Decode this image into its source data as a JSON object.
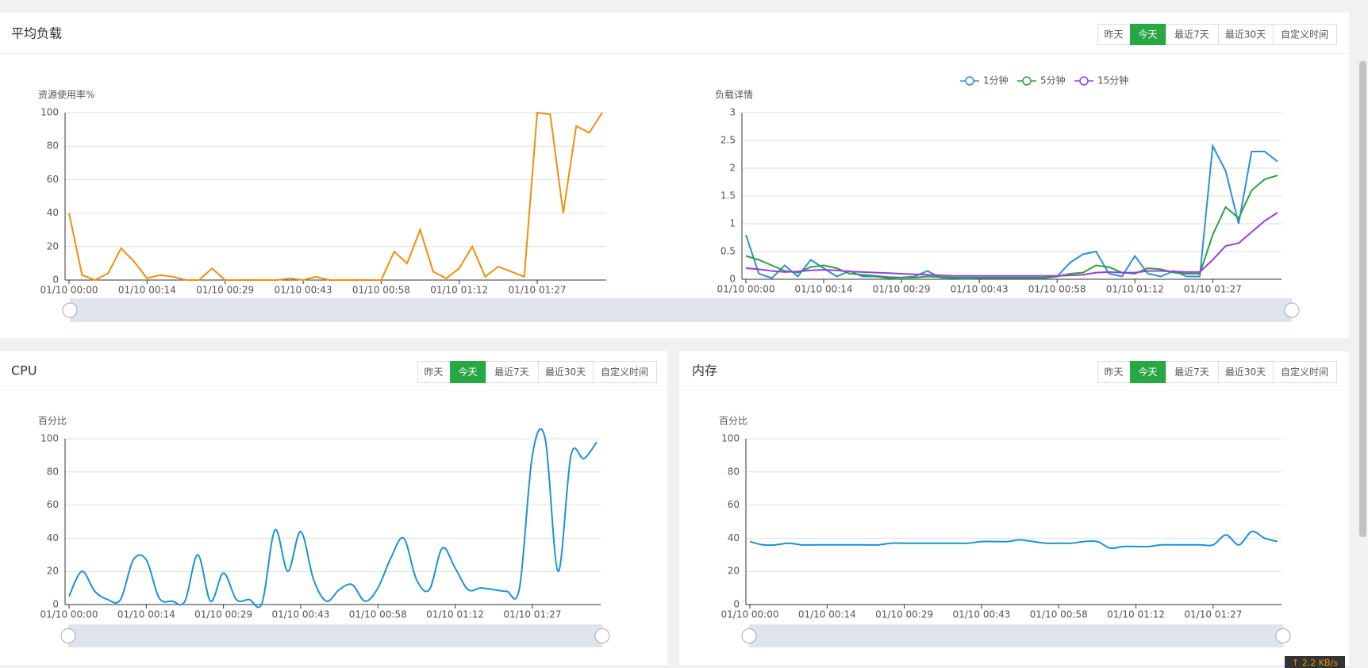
{
  "ui": {
    "panels": [
      {
        "title": "平均负载",
        "buttons": [
          "昨天",
          "今天",
          "最近7天",
          "最近30天",
          "自定义时间"
        ],
        "active": 1
      },
      {
        "title": "CPU",
        "buttons": [
          "昨天",
          "今天",
          "最近7天",
          "最近30天",
          "自定义时间"
        ],
        "active": 1
      },
      {
        "title": "内存",
        "buttons": [
          "昨天",
          "今天",
          "最近7天",
          "最近30天",
          "自定义时间"
        ],
        "active": 1
      }
    ],
    "badge": "↑ 2.2 KB/s"
  },
  "chart_data": [
    {
      "type": "line",
      "y_label": "资源使用率%",
      "smooth": false,
      "grid": true,
      "categories": [
        "01/10 00:00",
        null,
        null,
        null,
        null,
        null,
        "01/10 00:14",
        null,
        null,
        null,
        null,
        null,
        "01/10 00:29",
        null,
        null,
        null,
        null,
        null,
        "01/10 00:43",
        null,
        null,
        null,
        null,
        null,
        "01/10 00:58",
        null,
        null,
        null,
        null,
        null,
        "01/10 01:12",
        null,
        null,
        null,
        null,
        null,
        "01/10 01:27",
        null,
        null,
        null,
        null,
        null
      ],
      "series": [
        {
          "color": "#f0900a",
          "values": [
            40,
            3,
            0,
            4,
            19,
            11,
            1,
            3,
            2,
            0,
            0,
            7,
            0,
            0,
            0,
            0,
            0,
            1,
            0,
            2,
            0,
            0,
            0,
            0,
            0,
            17,
            10,
            30,
            5,
            1,
            7,
            20,
            2,
            8,
            5,
            2,
            100,
            99,
            40,
            92,
            88,
            100
          ]
        }
      ],
      "ylim": [
        0,
        100
      ],
      "yticks": [
        0,
        20,
        40,
        60,
        80,
        100
      ]
    },
    {
      "type": "line",
      "y_label": "负载详情",
      "smooth": false,
      "grid": true,
      "legend": "top",
      "categories": [
        "01/10 00:00",
        null,
        null,
        null,
        null,
        null,
        "01/10 00:14",
        null,
        null,
        null,
        null,
        null,
        "01/10 00:29",
        null,
        null,
        null,
        null,
        null,
        "01/10 00:43",
        null,
        null,
        null,
        null,
        null,
        "01/10 00:58",
        null,
        null,
        null,
        null,
        null,
        "01/10 01:12",
        null,
        null,
        null,
        null,
        null,
        "01/10 01:27",
        null,
        null,
        null,
        null,
        null
      ],
      "series": [
        {
          "name": "1分钟",
          "color": "#2d8fdd",
          "values": [
            0.8,
            0.1,
            0.02,
            0.25,
            0.05,
            0.35,
            0.2,
            0.05,
            0.15,
            0.05,
            0.05,
            0.02,
            0.03,
            0.05,
            0.15,
            0.03,
            0.02,
            0.01,
            0.02,
            0.02,
            0.02,
            0.02,
            0.02,
            0.02,
            0.05,
            0.3,
            0.45,
            0.5,
            0.1,
            0.05,
            0.42,
            0.1,
            0.05,
            0.15,
            0.05,
            0.05,
            2.4,
            1.95,
            1.0,
            2.3,
            2.3,
            2.12
          ]
        },
        {
          "name": "5分钟",
          "color": "#29a33c",
          "values": [
            0.42,
            0.35,
            0.25,
            0.15,
            0.12,
            0.22,
            0.25,
            0.2,
            0.1,
            0.08,
            0.06,
            0.04,
            0.03,
            0.03,
            0.05,
            0.04,
            0.03,
            0.03,
            0.03,
            0.03,
            0.03,
            0.03,
            0.03,
            0.03,
            0.05,
            0.1,
            0.12,
            0.25,
            0.22,
            0.12,
            0.1,
            0.2,
            0.18,
            0.12,
            0.1,
            0.1,
            0.8,
            1.3,
            1.1,
            1.6,
            1.8,
            1.87
          ]
        },
        {
          "name": "15分钟",
          "color": "#9a3ee0",
          "values": [
            0.2,
            0.18,
            0.15,
            0.13,
            0.14,
            0.16,
            0.17,
            0.16,
            0.14,
            0.13,
            0.12,
            0.11,
            0.1,
            0.09,
            0.08,
            0.07,
            0.06,
            0.06,
            0.06,
            0.06,
            0.06,
            0.06,
            0.06,
            0.06,
            0.06,
            0.07,
            0.08,
            0.12,
            0.13,
            0.12,
            0.12,
            0.15,
            0.15,
            0.14,
            0.13,
            0.13,
            0.35,
            0.6,
            0.65,
            0.85,
            1.05,
            1.2
          ]
        }
      ],
      "ylim": [
        0,
        3
      ],
      "yticks": [
        0,
        0.5,
        1,
        1.5,
        2,
        2.5,
        3
      ]
    },
    {
      "type": "line",
      "y_label": "百分比",
      "smooth": true,
      "grid": true,
      "categories": [
        "01/10 00:00",
        null,
        null,
        null,
        null,
        null,
        "01/10 00:14",
        null,
        null,
        null,
        null,
        null,
        "01/10 00:29",
        null,
        null,
        null,
        null,
        null,
        "01/10 00:43",
        null,
        null,
        null,
        null,
        null,
        "01/10 00:58",
        null,
        null,
        null,
        null,
        null,
        "01/10 01:12",
        null,
        null,
        null,
        null,
        null,
        "01/10 01:27",
        null,
        null,
        null,
        null,
        null
      ],
      "series": [
        {
          "color": "#1a94d4",
          "values": [
            5,
            20,
            8,
            3,
            3,
            27,
            27,
            4,
            2,
            2,
            30,
            2,
            19,
            3,
            3,
            1,
            45,
            20,
            44,
            15,
            2,
            9,
            12,
            2,
            10,
            28,
            40,
            15,
            9,
            34,
            22,
            9,
            10,
            9,
            8,
            10,
            90,
            100,
            20,
            90,
            88,
            98
          ]
        }
      ],
      "ylim": [
        0,
        100
      ],
      "yticks": [
        0,
        20,
        40,
        60,
        80,
        100
      ]
    },
    {
      "type": "line",
      "y_label": "百分比",
      "smooth": true,
      "grid": true,
      "categories": [
        "01/10 00:00",
        null,
        null,
        null,
        null,
        null,
        "01/10 00:14",
        null,
        null,
        null,
        null,
        null,
        "01/10 00:29",
        null,
        null,
        null,
        null,
        null,
        "01/10 00:43",
        null,
        null,
        null,
        null,
        null,
        "01/10 00:58",
        null,
        null,
        null,
        null,
        null,
        "01/10 01:12",
        null,
        null,
        null,
        null,
        null,
        "01/10 01:27",
        null,
        null,
        null,
        null,
        null
      ],
      "series": [
        {
          "color": "#1a94d4",
          "values": [
            38,
            36,
            36,
            37,
            36,
            36,
            36,
            36,
            36,
            36,
            36,
            37,
            37,
            37,
            37,
            37,
            37,
            37,
            38,
            38,
            38,
            39,
            38,
            37,
            37,
            37,
            38,
            38,
            34,
            35,
            35,
            35,
            36,
            36,
            36,
            36,
            36,
            42,
            36,
            44,
            40,
            38
          ]
        }
      ],
      "ylim": [
        0,
        100
      ],
      "yticks": [
        0,
        20,
        40,
        60,
        80,
        100
      ]
    }
  ]
}
